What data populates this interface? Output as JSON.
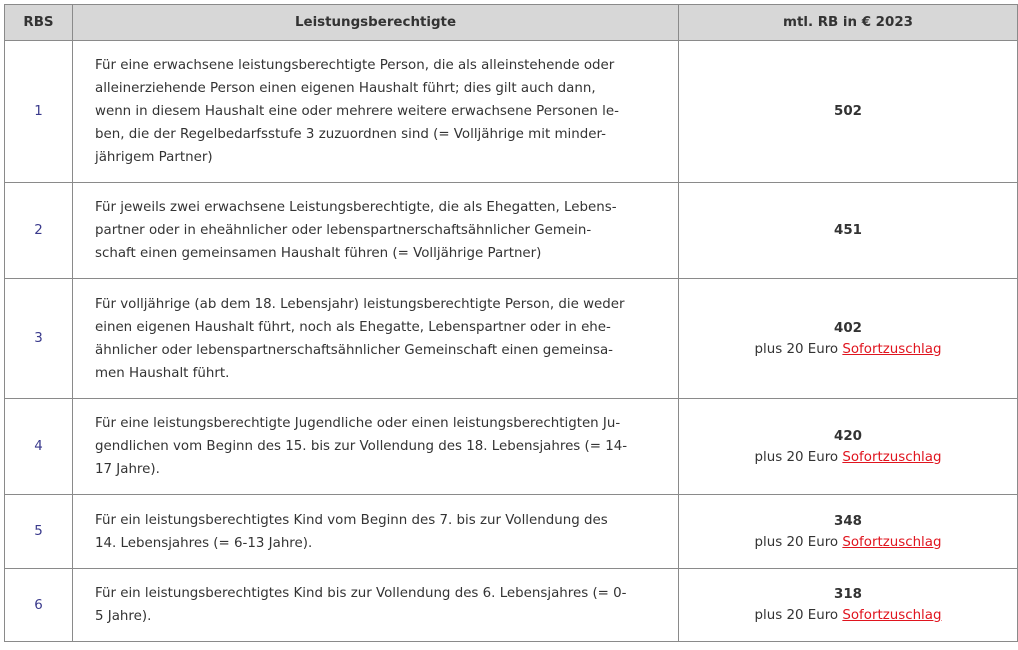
{
  "header": {
    "col1": "RBS",
    "col2": "Leistungsberechtigte",
    "col3": "mtl. RB in € 2023"
  },
  "rows": [
    {
      "rbs": "1",
      "lines": [
        "Für eine erwachsene leistungsberechtigte Person, die als alleinstehende oder",
        "alleinerziehende Person einen eigenen Haushalt führt; dies gilt auch dann,",
        "wenn in diesem Haushalt eine oder mehrere weitere erwachsene Personen le-",
        "ben, die der Regelbedarfsstufe 3 zuzuordnen sind (= Volljährige mit minder-",
        "jährigem Partner)"
      ],
      "amount": "502",
      "extra": "",
      "link": ""
    },
    {
      "rbs": "2",
      "lines": [
        "Für jeweils zwei erwachsene Leistungsberechtigte, die als Ehegatten, Lebens-",
        "partner oder in eheähnlicher oder lebenspartnerschaftsähnlicher Gemein-",
        "schaft einen gemeinsamen Haushalt führen (= Volljährige Partner)"
      ],
      "amount": "451",
      "extra": "",
      "link": ""
    },
    {
      "rbs": "3",
      "lines": [
        "Für volljährige (ab dem 18. Lebensjahr) leistungsberechtigte Person, die weder",
        "einen eigenen Haushalt führt, noch als Ehegatte, Lebenspartner oder in ehe-",
        "ähnlicher oder lebenspartnerschaftsähnlicher Gemeinschaft einen gemeinsa-",
        "men Haushalt führt."
      ],
      "amount": "402",
      "extra": "plus 20 Euro ",
      "link": "Sofortzuschlag"
    },
    {
      "rbs": "4",
      "lines": [
        "Für eine leistungsberechtigte Jugendliche oder einen leistungsberechtigten Ju-",
        "gendlichen vom Beginn des 15. bis zur Vollendung des 18. Lebensjahres (= 14-",
        "17 Jahre)."
      ],
      "amount": "420",
      "extra": "plus 20 Euro ",
      "link": "Sofortzuschlag"
    },
    {
      "rbs": "5",
      "lines": [
        "Für ein leistungsberechtigtes Kind vom Beginn des 7. bis zur Vollendung des",
        "14. Lebensjahres (= 6-13 Jahre)."
      ],
      "amount": "348",
      "extra": "plus 20 Euro ",
      "link": "Sofortzuschlag"
    },
    {
      "rbs": "6",
      "lines": [
        "Für ein leistungsberechtigtes Kind bis zur Vollendung des 6. Lebensjahres (= 0-",
        "5 Jahre)."
      ],
      "amount": "318",
      "extra": "plus 20 Euro ",
      "link": "Sofortzuschlag"
    }
  ]
}
